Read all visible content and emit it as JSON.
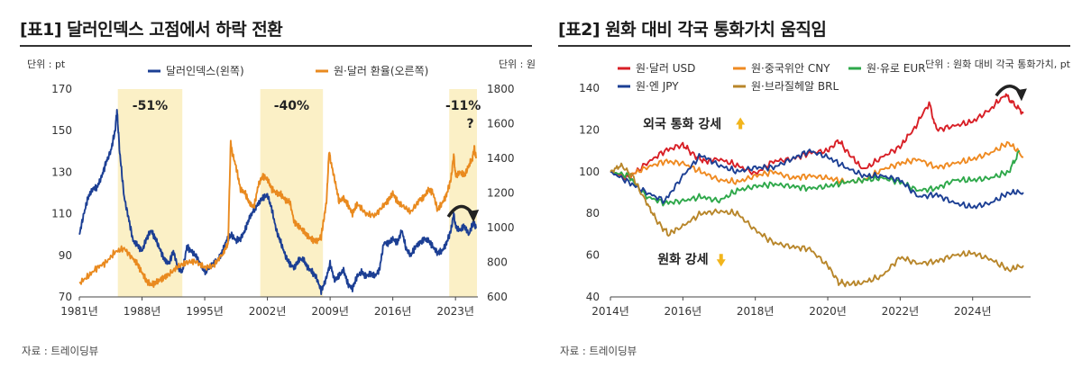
{
  "source_label": "자료 : 트레이딩뷰",
  "chart_data": [
    {
      "type": "line",
      "title": "[표1] 달러인덱스 고점에서 하락 전환",
      "unit_left": "단위 : pt",
      "unit_right": "단위 : 원",
      "xlim": [
        1981,
        2025.5
      ],
      "xticks": [
        "1981년",
        "1988년",
        "1995년",
        "2002년",
        "2009년",
        "2016년",
        "2023년"
      ],
      "xtick_values": [
        1981,
        1988,
        1995,
        2002,
        2009,
        2016,
        2023
      ],
      "ylim_left": [
        70,
        170
      ],
      "yticks_left": [
        "170",
        "150",
        "130",
        "110",
        "90",
        "70"
      ],
      "ylim_right": [
        600,
        1800
      ],
      "yticks_right": [
        "1800",
        "1600",
        "1400",
        "1200",
        "1000",
        "800",
        "600"
      ],
      "grid": false,
      "legend": "top",
      "highlights": [
        {
          "x0": 1985.3,
          "x1": 1992.5,
          "label": "-51%"
        },
        {
          "x0": 2001.2,
          "x1": 2008.2,
          "label": "-40%"
        },
        {
          "x0": 2022.3,
          "x1": 2025.4,
          "label": "-11%",
          "note": "?"
        }
      ],
      "series": [
        {
          "name": "달러인덱스(왼쪽)",
          "axis": "left",
          "color": "#1c3f94",
          "x": [
            1981.0,
            1981.5,
            1982.0,
            1982.5,
            1983.0,
            1983.5,
            1984.0,
            1984.5,
            1985.0,
            1985.2,
            1985.5,
            1986.0,
            1986.5,
            1987.0,
            1987.5,
            1988.0,
            1988.5,
            1989.0,
            1989.5,
            1990.0,
            1990.5,
            1991.0,
            1991.5,
            1992.0,
            1992.5,
            1993.0,
            1993.5,
            1994.0,
            1994.5,
            1995.0,
            1995.5,
            1996.0,
            1996.5,
            1997.0,
            1997.5,
            1998.0,
            1998.5,
            1999.0,
            1999.5,
            2000.0,
            2000.5,
            2001.0,
            2001.5,
            2002.0,
            2002.5,
            2003.0,
            2003.5,
            2004.0,
            2004.5,
            2005.0,
            2005.5,
            2006.0,
            2006.5,
            2007.0,
            2007.5,
            2008.0,
            2008.5,
            2009.0,
            2009.5,
            2010.0,
            2010.5,
            2011.0,
            2011.5,
            2012.0,
            2012.5,
            2013.0,
            2013.5,
            2014.0,
            2014.5,
            2015.0,
            2015.5,
            2016.0,
            2016.5,
            2017.0,
            2017.5,
            2018.0,
            2018.5,
            2019.0,
            2019.5,
            2020.0,
            2020.5,
            2021.0,
            2021.5,
            2022.0,
            2022.5,
            2022.8,
            2023.0,
            2023.5,
            2024.0,
            2024.5,
            2025.0,
            2025.3
          ],
          "values": [
            100,
            110,
            118,
            122,
            123,
            128,
            135,
            140,
            150,
            160,
            140,
            118,
            108,
            97,
            95,
            92,
            98,
            102,
            98,
            93,
            88,
            86,
            92,
            84,
            82,
            94,
            92,
            90,
            86,
            82,
            84,
            86,
            88,
            92,
            98,
            100,
            97,
            98,
            102,
            108,
            112,
            115,
            118,
            119,
            112,
            102,
            96,
            90,
            86,
            84,
            88,
            88,
            84,
            82,
            79,
            73,
            78,
            86,
            78,
            80,
            83,
            76,
            74,
            80,
            82,
            80,
            81,
            80,
            83,
            96,
            96,
            98,
            96,
            102,
            93,
            90,
            94,
            96,
            98,
            97,
            94,
            91,
            92,
            96,
            102,
            110,
            104,
            102,
            104,
            100,
            106,
            103
          ]
        },
        {
          "name": "원·달러 환율(오른쪽)",
          "axis": "right",
          "color": "#e98a1f",
          "x": [
            1981.0,
            1982.0,
            1983.0,
            1984.0,
            1985.0,
            1986.0,
            1987.0,
            1987.5,
            1988.0,
            1988.5,
            1989.0,
            1989.5,
            1990.0,
            1990.5,
            1991.0,
            1992.0,
            1993.0,
            1994.0,
            1995.0,
            1996.0,
            1997.0,
            1997.6,
            1997.9,
            1998.0,
            1998.5,
            1999.0,
            1999.5,
            2000.0,
            2000.5,
            2001.0,
            2001.5,
            2002.0,
            2002.5,
            2003.0,
            2003.5,
            2004.0,
            2004.5,
            2005.0,
            2005.5,
            2006.0,
            2006.5,
            2007.0,
            2007.5,
            2008.0,
            2008.3,
            2008.6,
            2008.9,
            2009.0,
            2009.5,
            2010.0,
            2010.5,
            2011.0,
            2011.5,
            2012.0,
            2013.0,
            2014.0,
            2015.0,
            2015.5,
            2016.0,
            2016.5,
            2017.0,
            2018.0,
            2019.0,
            2019.5,
            2020.0,
            2020.5,
            2021.0,
            2021.5,
            2022.0,
            2022.5,
            2022.8,
            2023.0,
            2023.5,
            2024.0,
            2024.5,
            2024.9,
            2025.1,
            2025.3
          ],
          "values": [
            680,
            720,
            770,
            800,
            860,
            880,
            820,
            790,
            740,
            690,
            670,
            680,
            700,
            715,
            730,
            775,
            800,
            805,
            770,
            780,
            850,
            900,
            1500,
            1450,
            1350,
            1220,
            1200,
            1140,
            1120,
            1250,
            1300,
            1280,
            1220,
            1200,
            1190,
            1160,
            1150,
            1030,
            1010,
            980,
            950,
            930,
            920,
            950,
            1050,
            1150,
            1450,
            1400,
            1280,
            1150,
            1170,
            1130,
            1080,
            1140,
            1080,
            1070,
            1130,
            1160,
            1200,
            1150,
            1130,
            1090,
            1160,
            1180,
            1220,
            1200,
            1100,
            1140,
            1190,
            1280,
            1420,
            1300,
            1320,
            1300,
            1360,
            1400,
            1460,
            1400
          ]
        }
      ]
    },
    {
      "type": "line",
      "title": "[표2] 원화 대비 각국 통화가치 움직임",
      "unit": "단위 : 원화 대비 각국 통화가치, pt",
      "xlim": [
        2014,
        2025.6
      ],
      "xticks": [
        "2014년",
        "2016년",
        "2018년",
        "2020년",
        "2022년",
        "2024년"
      ],
      "xtick_values": [
        2014,
        2016,
        2018,
        2020,
        2022,
        2024
      ],
      "ylim": [
        40,
        140
      ],
      "yticks": [
        "140",
        "120",
        "100",
        "80",
        "60",
        "40"
      ],
      "grid": false,
      "legend": "top-left",
      "annotations": [
        {
          "text": "외국 통화 강세",
          "x": 2014.9,
          "y": 123,
          "arrow": "up"
        },
        {
          "text": "원화 강세",
          "x": 2015.3,
          "y": 58,
          "arrow": "down"
        }
      ],
      "series": [
        {
          "name": "원·달러 USD",
          "color": "#d81f26",
          "x": [
            2014.0,
            2014.5,
            2015.0,
            2015.5,
            2016.0,
            2016.3,
            2016.6,
            2017.0,
            2017.5,
            2018.0,
            2018.5,
            2019.0,
            2019.5,
            2020.0,
            2020.3,
            2020.6,
            2021.0,
            2021.5,
            2022.0,
            2022.4,
            2022.8,
            2023.0,
            2023.5,
            2024.0,
            2024.5,
            2024.9,
            2025.1,
            2025.4
          ],
          "values": [
            100,
            97,
            104,
            110,
            113,
            108,
            105,
            106,
            103,
            99,
            105,
            106,
            109,
            110,
            115,
            108,
            101,
            107,
            112,
            121,
            133,
            120,
            122,
            124,
            130,
            137,
            133,
            128
          ]
        },
        {
          "name": "원·중국위안 CNY",
          "color": "#ef8a21",
          "x": [
            2014.0,
            2014.5,
            2015.0,
            2015.5,
            2016.0,
            2016.5,
            2017.0,
            2017.5,
            2018.0,
            2018.5,
            2019.0,
            2019.5,
            2020.0,
            2020.5,
            2021.0,
            2021.5,
            2022.0,
            2022.5,
            2023.0,
            2023.5,
            2024.0,
            2024.5,
            2025.0,
            2025.4
          ],
          "values": [
            100,
            98,
            102,
            105,
            104,
            100,
            96,
            95,
            98,
            100,
            97,
            98,
            97,
            95,
            96,
            101,
            104,
            106,
            102,
            104,
            106,
            109,
            114,
            107
          ]
        },
        {
          "name": "원·유로 EUR",
          "color": "#2ea84a",
          "x": [
            2014.0,
            2014.5,
            2015.0,
            2015.5,
            2016.0,
            2016.5,
            2017.0,
            2017.5,
            2018.0,
            2018.5,
            2019.0,
            2019.5,
            2020.0,
            2020.5,
            2021.0,
            2021.5,
            2022.0,
            2022.5,
            2023.0,
            2023.5,
            2024.0,
            2024.5,
            2025.0,
            2025.3
          ],
          "values": [
            100,
            98,
            88,
            85,
            86,
            88,
            86,
            91,
            93,
            94,
            93,
            92,
            93,
            95,
            96,
            97,
            95,
            91,
            92,
            96,
            96,
            97,
            100,
            110
          ]
        },
        {
          "name": "원·엔 JPY",
          "color": "#1c3f94",
          "x": [
            2014.0,
            2014.5,
            2015.0,
            2015.5,
            2016.0,
            2016.5,
            2017.0,
            2017.5,
            2018.0,
            2018.5,
            2019.0,
            2019.5,
            2020.0,
            2020.5,
            2021.0,
            2021.5,
            2022.0,
            2022.5,
            2023.0,
            2023.5,
            2024.0,
            2024.5,
            2025.0,
            2025.4
          ],
          "values": [
            100,
            95,
            90,
            86,
            98,
            108,
            103,
            100,
            102,
            102,
            106,
            110,
            107,
            102,
            98,
            98,
            96,
            88,
            89,
            85,
            83,
            85,
            90,
            90
          ]
        },
        {
          "name": "원·브라질헤알 BRL",
          "color": "#b8862a",
          "x": [
            2014.0,
            2014.3,
            2014.6,
            2015.0,
            2015.3,
            2015.6,
            2016.0,
            2016.5,
            2017.0,
            2017.5,
            2018.0,
            2018.5,
            2019.0,
            2019.5,
            2020.0,
            2020.3,
            2020.6,
            2021.0,
            2021.5,
            2022.0,
            2022.5,
            2023.0,
            2023.5,
            2024.0,
            2024.5,
            2025.0,
            2025.4
          ],
          "values": [
            100,
            103,
            98,
            85,
            76,
            70,
            74,
            80,
            81,
            80,
            72,
            66,
            64,
            63,
            55,
            47,
            46,
            47,
            50,
            59,
            56,
            57,
            60,
            61,
            58,
            53,
            55
          ]
        }
      ]
    }
  ]
}
